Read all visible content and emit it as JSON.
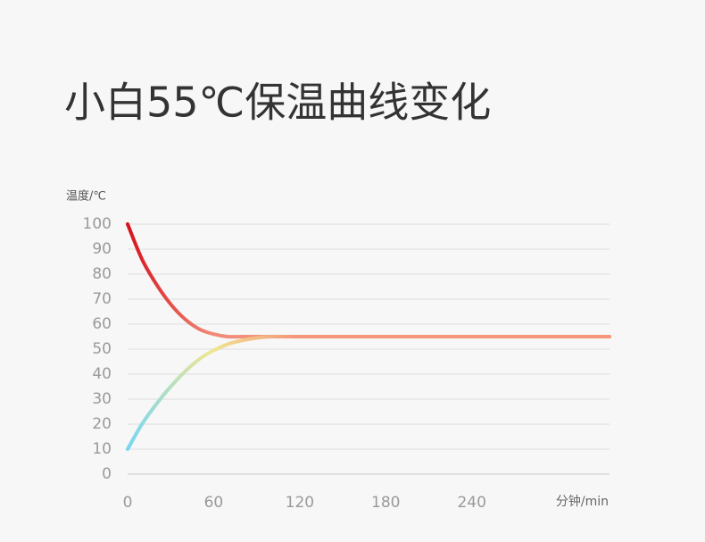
{
  "chart_data": {
    "type": "line",
    "title": "小白55℃保温曲线变化",
    "y_label": "温度/℃",
    "x_label": "分钟/min",
    "x": [
      0,
      10,
      20,
      30,
      40,
      50,
      60,
      70,
      80,
      90,
      100,
      110,
      120,
      180,
      240,
      336
    ],
    "series": [
      {
        "colors": [
          "#d7121c",
          "#f08a78",
          "#f5957a"
        ],
        "values": [
          100,
          86,
          76,
          68,
          62,
          58,
          56,
          55,
          55,
          55,
          55,
          55,
          55,
          55,
          55,
          55
        ]
      },
      {
        "colors": [
          "#78d6f2",
          "#f0e890",
          "#f5957a"
        ],
        "values": [
          10,
          20,
          28,
          35,
          41,
          46,
          49.5,
          52,
          53.5,
          54.5,
          55,
          55,
          55,
          55,
          55,
          55
        ]
      }
    ],
    "xlim": [
      0,
      336
    ],
    "xticks": [
      0,
      60,
      120,
      180,
      240
    ],
    "ylim": [
      0,
      100
    ],
    "yticks": [
      0,
      10,
      20,
      30,
      40,
      50,
      60,
      70,
      80,
      90,
      100
    ],
    "grid": true
  }
}
